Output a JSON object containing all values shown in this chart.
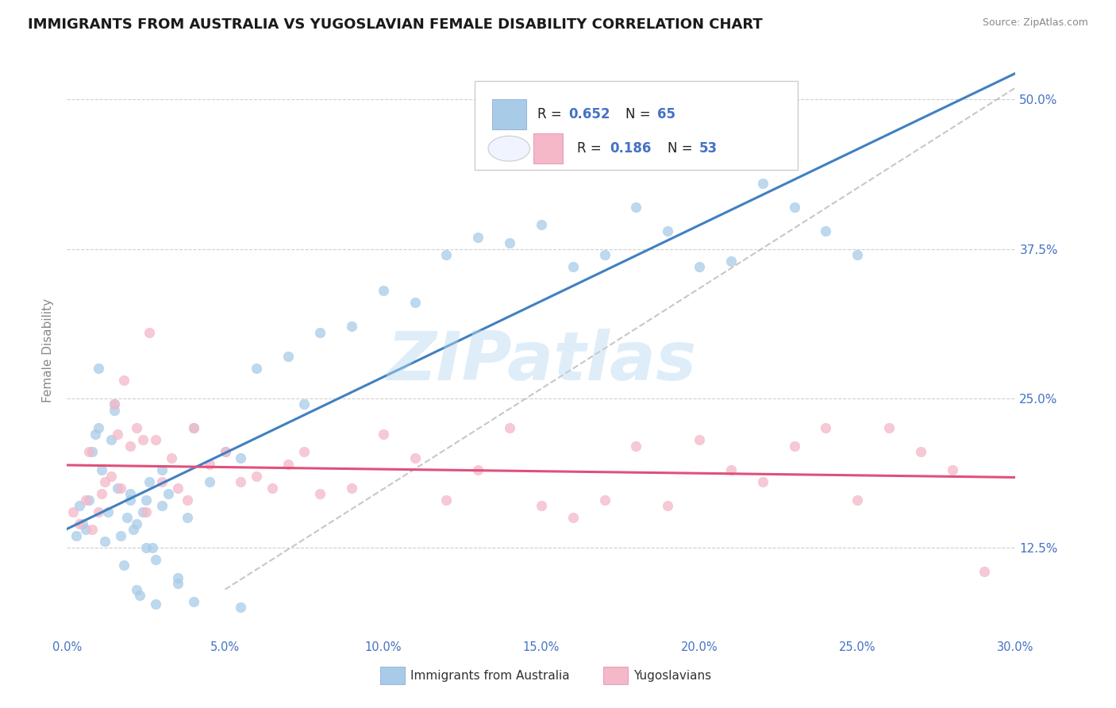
{
  "title": "IMMIGRANTS FROM AUSTRALIA VS YUGOSLAVIAN FEMALE DISABILITY CORRELATION CHART",
  "source": "Source: ZipAtlas.com",
  "ylabel": "Female Disability",
  "xlim": [
    0.0,
    30.0
  ],
  "ylim": [
    5.0,
    53.0
  ],
  "yticks": [
    12.5,
    25.0,
    37.5,
    50.0
  ],
  "ytick_labels": [
    "12.5%",
    "25.0%",
    "37.5%",
    "50.0%"
  ],
  "xtick_positions": [
    0,
    5,
    10,
    15,
    20,
    25,
    30
  ],
  "legend_r1": "R = 0.652",
  "legend_n1": "N = 65",
  "legend_r2": "R = 0.186",
  "legend_n2": "N = 53",
  "color_blue_scatter": "#a8cce8",
  "color_pink_scatter": "#f4b8c8",
  "color_line_blue": "#4080c0",
  "color_line_pink": "#e0507a",
  "color_diagonal": "#b0b0b0",
  "color_title": "#1a1a1a",
  "color_axis_labels": "#4472c4",
  "color_legend_text_blue": "#4472c4",
  "color_legend_text_black": "#222222",
  "color_grid": "#d0d0d0",
  "watermark": "ZIPatlas",
  "watermark_color": "#b8d8f0",
  "legend_label1": "Immigrants from Australia",
  "legend_label2": "Yugoslavians",
  "background_color": "#ffffff",
  "blue_x": [
    0.3,
    0.4,
    0.5,
    0.6,
    0.7,
    0.8,
    0.9,
    1.0,
    1.1,
    1.2,
    1.3,
    1.4,
    1.5,
    1.6,
    1.7,
    1.8,
    1.9,
    2.0,
    2.1,
    2.2,
    2.3,
    2.4,
    2.5,
    2.6,
    2.7,
    2.8,
    3.0,
    3.2,
    3.5,
    3.8,
    4.0,
    4.5,
    5.0,
    5.5,
    6.0,
    7.0,
    7.5,
    8.0,
    9.0,
    10.0,
    11.0,
    12.0,
    13.0,
    14.0,
    15.0,
    16.0,
    17.0,
    18.0,
    19.0,
    20.0,
    21.0,
    22.0,
    23.0,
    24.0,
    25.0,
    3.0,
    2.5,
    2.0,
    1.5,
    1.0,
    3.5,
    4.0,
    5.5,
    2.2,
    2.8
  ],
  "blue_y": [
    13.5,
    16.0,
    14.5,
    14.0,
    16.5,
    20.5,
    22.0,
    22.5,
    19.0,
    13.0,
    15.5,
    21.5,
    24.0,
    17.5,
    13.5,
    11.0,
    15.0,
    17.0,
    14.0,
    14.5,
    8.5,
    15.5,
    16.5,
    18.0,
    12.5,
    11.5,
    19.0,
    17.0,
    10.0,
    15.0,
    22.5,
    18.0,
    20.5,
    20.0,
    27.5,
    28.5,
    24.5,
    30.5,
    31.0,
    34.0,
    33.0,
    37.0,
    38.5,
    38.0,
    39.5,
    36.0,
    37.0,
    41.0,
    39.0,
    36.0,
    36.5,
    43.0,
    41.0,
    39.0,
    37.0,
    16.0,
    12.5,
    16.5,
    24.5,
    27.5,
    9.5,
    8.0,
    7.5,
    9.0,
    7.8
  ],
  "pink_x": [
    0.2,
    0.4,
    0.6,
    0.7,
    0.8,
    1.0,
    1.1,
    1.2,
    1.4,
    1.5,
    1.6,
    1.8,
    2.0,
    2.2,
    2.4,
    2.6,
    2.8,
    3.0,
    3.3,
    3.5,
    4.0,
    4.5,
    5.0,
    5.5,
    6.0,
    7.0,
    7.5,
    8.0,
    9.0,
    10.0,
    11.0,
    12.0,
    13.0,
    14.0,
    15.0,
    16.0,
    17.0,
    18.0,
    19.0,
    20.0,
    21.0,
    22.0,
    24.0,
    25.0,
    26.0,
    27.0,
    28.0,
    29.0,
    1.7,
    2.5,
    3.8,
    6.5,
    23.0
  ],
  "pink_y": [
    15.5,
    14.5,
    16.5,
    20.5,
    14.0,
    15.5,
    17.0,
    18.0,
    18.5,
    24.5,
    22.0,
    26.5,
    21.0,
    22.5,
    21.5,
    30.5,
    21.5,
    18.0,
    20.0,
    17.5,
    22.5,
    19.5,
    20.5,
    18.0,
    18.5,
    19.5,
    20.5,
    17.0,
    17.5,
    22.0,
    20.0,
    16.5,
    19.0,
    22.5,
    16.0,
    15.0,
    16.5,
    21.0,
    16.0,
    21.5,
    19.0,
    18.0,
    22.5,
    16.5,
    22.5,
    20.5,
    19.0,
    10.5,
    17.5,
    15.5,
    16.5,
    17.5,
    21.0
  ]
}
